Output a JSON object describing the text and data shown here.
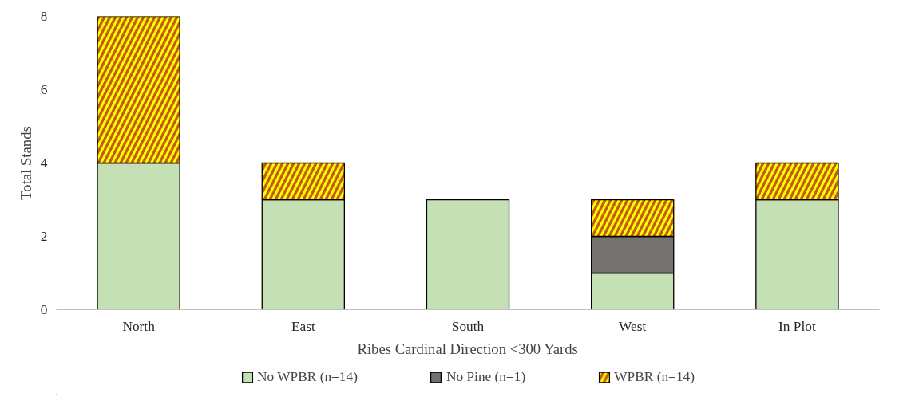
{
  "chart_data": {
    "type": "bar",
    "stacked": true,
    "xlabel": "Ribes Cardinal Direction <300 Yards",
    "ylabel": "Total Stands",
    "categories": [
      "North",
      "East",
      "South",
      "West",
      "In Plot"
    ],
    "series": [
      {
        "name": "No WPBR (n=14)",
        "color": "#c5e0b4",
        "values": [
          4,
          3,
          3,
          1,
          3
        ]
      },
      {
        "name": "No Pine (n=1)",
        "color": "#767171",
        "values": [
          0,
          0,
          0,
          1,
          0
        ]
      },
      {
        "name": "WPBR (n=14)",
        "color": "#c55a11",
        "values": [
          4,
          1,
          0,
          1,
          1
        ]
      }
    ],
    "ylim": [
      0,
      8
    ],
    "yticks": [
      0,
      2,
      4,
      6,
      8
    ],
    "grid": false,
    "legend": "bottom"
  }
}
